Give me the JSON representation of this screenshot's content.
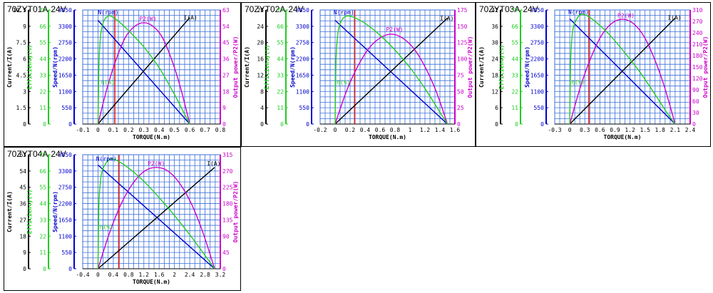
{
  "chart_data": [
    {
      "type": "line",
      "title": "70ZYT01A-24V",
      "xlabel": "TORQUE(N.m)",
      "x_ticks": [
        "-0.1",
        "0",
        "0.1",
        "0.2",
        "0.3",
        "0.4",
        "0.5",
        "0.6",
        "0.7",
        "0.8"
      ],
      "xlim": [
        -0.1,
        0.8
      ],
      "y_axes": [
        {
          "key": "current",
          "label": "Current/I(A)",
          "color": "#000000",
          "ticks": [
            "0",
            "1.5",
            "3",
            "4.5",
            "6",
            "7.5",
            "9",
            "10.5"
          ]
        },
        {
          "key": "efficiency",
          "label": "Efficiency(%)",
          "color": "#22cc22",
          "ticks": [
            "0",
            "11",
            "22",
            "33",
            "44",
            "55",
            "66",
            "77"
          ]
        },
        {
          "key": "speed",
          "label": "Speed/N(rpm)",
          "color": "#0000cc",
          "ticks": [
            "0",
            "550",
            "1100",
            "1650",
            "2200",
            "2750",
            "3300",
            "3850"
          ]
        },
        {
          "key": "power",
          "label": "Output power/P2(W)",
          "color": "#cc00cc",
          "ticks": [
            "0",
            "9",
            "18",
            "27",
            "36",
            "45",
            "54",
            "63"
          ]
        }
      ],
      "rated_torque": 0.11,
      "series": [
        {
          "name": "N(rpm)",
          "color": "#0000cc",
          "axis": "speed",
          "x": [
            0,
            0.6
          ],
          "y": [
            3500,
            0
          ]
        },
        {
          "name": "I(A)",
          "color": "#000000",
          "axis": "current",
          "x": [
            0,
            0.6
          ],
          "y": [
            0,
            9.8
          ]
        },
        {
          "name": "P2(W)",
          "color": "#cc00cc",
          "axis": "power",
          "x": [
            0,
            0.06,
            0.12,
            0.18,
            0.24,
            0.3,
            0.36,
            0.42,
            0.48,
            0.54,
            0.6
          ],
          "y": [
            0,
            20,
            36,
            48,
            54,
            56,
            54,
            48,
            36,
            20,
            0
          ]
        },
        {
          "name": "η(%)",
          "color": "#22cc22",
          "axis": "efficiency",
          "x": [
            0,
            0.005,
            0.01,
            0.02,
            0.04,
            0.07,
            0.1,
            0.15,
            0.2,
            0.3,
            0.4,
            0.5,
            0.56,
            0.6
          ],
          "y": [
            0,
            35,
            50,
            62,
            70,
            73,
            72,
            68,
            63,
            52,
            38,
            20,
            8,
            0
          ]
        }
      ],
      "curve_labels": [
        {
          "text": "N(rpm)",
          "x": 0.0,
          "axis": "speed",
          "y": 3700,
          "color": "#0000cc"
        },
        {
          "text": "P2(W)",
          "x": 0.27,
          "axis": "power",
          "y": 57,
          "color": "#cc00cc"
        },
        {
          "text": "I(A)",
          "x": 0.56,
          "axis": "current",
          "y": 9.6,
          "color": "#000000"
        },
        {
          "text": "η(%)",
          "x": 0.02,
          "axis": "efficiency",
          "y": 27,
          "color": "#22cc22"
        }
      ]
    },
    {
      "type": "line",
      "title": "70ZYT02A-24V",
      "xlabel": "TORQUE(N.m)",
      "x_ticks": [
        "-0.2",
        "0",
        "0.2",
        "0.4",
        "0.6",
        "0.8",
        "1",
        "1.2",
        "1.4",
        "1.6"
      ],
      "xlim": [
        -0.2,
        1.6
      ],
      "y_axes": [
        {
          "key": "current",
          "label": "Current/I(A)",
          "color": "#000000",
          "ticks": [
            "0",
            "4",
            "8",
            "12",
            "16",
            "20",
            "24",
            "28"
          ]
        },
        {
          "key": "efficiency",
          "label": "Efficiency(%)",
          "color": "#22cc22",
          "ticks": [
            "0",
            "11",
            "22",
            "33",
            "44",
            "55",
            "66",
            "77"
          ]
        },
        {
          "key": "speed",
          "label": "Speed/N(rpm)",
          "color": "#0000cc",
          "ticks": [
            "0",
            "550",
            "1100",
            "1650",
            "2200",
            "2750",
            "3300",
            "3850"
          ]
        },
        {
          "key": "power",
          "label": "Output power/P2(W)",
          "color": "#cc00cc",
          "ticks": [
            "0",
            "25",
            "50",
            "75",
            "100",
            "125",
            "150",
            "175"
          ]
        }
      ],
      "rated_torque": 0.26,
      "series": [
        {
          "name": "N(rpm)",
          "color": "#0000cc",
          "axis": "speed",
          "x": [
            0,
            1.5
          ],
          "y": [
            3500,
            0
          ]
        },
        {
          "name": "I(A)",
          "color": "#000000",
          "axis": "current",
          "x": [
            0,
            1.5
          ],
          "y": [
            0,
            26
          ]
        },
        {
          "name": "P2(W)",
          "color": "#cc00cc",
          "axis": "power",
          "x": [
            0,
            0.15,
            0.3,
            0.45,
            0.6,
            0.75,
            0.9,
            1.05,
            1.2,
            1.35,
            1.5
          ],
          "y": [
            0,
            50,
            88,
            116,
            132,
            138,
            132,
            116,
            88,
            50,
            0
          ]
        },
        {
          "name": "η(%)",
          "color": "#22cc22",
          "axis": "efficiency",
          "x": [
            0,
            0.01,
            0.025,
            0.05,
            0.1,
            0.16,
            0.25,
            0.4,
            0.6,
            0.8,
            1.0,
            1.2,
            1.4,
            1.5
          ],
          "y": [
            0,
            40,
            55,
            65,
            71,
            73,
            72,
            68,
            60,
            50,
            38,
            24,
            8,
            0
          ]
        }
      ],
      "curve_labels": [
        {
          "text": "N(rpm)",
          "x": -0.02,
          "axis": "speed",
          "y": 3700,
          "color": "#0000cc"
        },
        {
          "text": "P2(W)",
          "x": 0.68,
          "axis": "power",
          "y": 142,
          "color": "#cc00cc"
        },
        {
          "text": "I(A)",
          "x": 1.4,
          "axis": "current",
          "y": 25.5,
          "color": "#000000"
        },
        {
          "text": "η(%)",
          "x": 0.02,
          "axis": "efficiency",
          "y": 27,
          "color": "#22cc22"
        }
      ]
    },
    {
      "type": "line",
      "title": "70ZYT03A-24V",
      "xlabel": "TORQUE(N.m)",
      "x_ticks": [
        "-0.3",
        "0",
        "0.3",
        "0.6",
        "0.9",
        "1.2",
        "1.5",
        "1.8",
        "2.1",
        "2.4"
      ],
      "xlim": [
        -0.3,
        2.4
      ],
      "y_axes": [
        {
          "key": "current",
          "label": "Current/I(A)",
          "color": "#000000",
          "ticks": [
            "0",
            "6",
            "12",
            "18",
            "24",
            "30",
            "36",
            "42"
          ]
        },
        {
          "key": "efficiency",
          "label": "Efficiency(%)",
          "color": "#22cc22",
          "ticks": [
            "0",
            "11",
            "22",
            "33",
            "44",
            "55",
            "66",
            "77"
          ]
        },
        {
          "key": "speed",
          "label": "Speed/N(rpm)",
          "color": "#0000cc",
          "ticks": [
            "0",
            "550",
            "1100",
            "1650",
            "2200",
            "2750",
            "3300",
            "3850"
          ]
        },
        {
          "key": "power",
          "label": "Output power/P2(W)",
          "color": "#cc00cc",
          "ticks": [
            "0",
            "30",
            "60",
            "90",
            "120",
            "150",
            "180",
            "210",
            "240",
            "270",
            "310"
          ]
        }
      ],
      "rated_torque": 0.38,
      "series": [
        {
          "name": "N(rpm)",
          "color": "#0000cc",
          "axis": "speed",
          "x": [
            0,
            2.1
          ],
          "y": [
            3550,
            0
          ]
        },
        {
          "name": "I(A)",
          "color": "#000000",
          "axis": "current",
          "x": [
            0,
            2.1
          ],
          "y": [
            0,
            39
          ]
        },
        {
          "name": "P2(W)",
          "color": "#cc00cc",
          "axis": "power",
          "x": [
            0,
            0.21,
            0.42,
            0.63,
            0.84,
            1.05,
            1.26,
            1.47,
            1.68,
            1.89,
            2.1
          ],
          "y": [
            0,
            100,
            180,
            240,
            274,
            285,
            274,
            240,
            180,
            100,
            0
          ]
        },
        {
          "name": "η(%)",
          "color": "#22cc22",
          "axis": "efficiency",
          "x": [
            0,
            0.015,
            0.035,
            0.07,
            0.14,
            0.22,
            0.35,
            0.55,
            0.8,
            1.1,
            1.4,
            1.7,
            1.95,
            2.1
          ],
          "y": [
            0,
            40,
            55,
            65,
            71,
            74,
            73,
            68,
            60,
            48,
            35,
            20,
            7,
            0
          ]
        }
      ],
      "curve_labels": [
        {
          "text": "N(rpm)",
          "x": -0.03,
          "axis": "speed",
          "y": 3720,
          "color": "#0000cc"
        },
        {
          "text": "P2(W)",
          "x": 0.95,
          "axis": "power",
          "y": 290,
          "color": "#cc00cc"
        },
        {
          "text": "I(A)",
          "x": 1.95,
          "axis": "current",
          "y": 38.5,
          "color": "#000000"
        },
        {
          "text": "η(%)",
          "x": 0.03,
          "axis": "efficiency",
          "y": 27,
          "color": "#22cc22"
        }
      ]
    },
    {
      "type": "line",
      "title": "70ZYT04A-24V",
      "xlabel": "TORQUE(N.m)",
      "x_ticks": [
        "-0.4",
        "0",
        "0.4",
        "0.8",
        "1.2",
        "1.6",
        "2",
        "2.4",
        "2.8",
        "3.2"
      ],
      "xlim": [
        -0.4,
        3.2
      ],
      "y_axes": [
        {
          "key": "current",
          "label": "Current/I(A)",
          "color": "#000000",
          "ticks": [
            "0",
            "9",
            "18",
            "27",
            "36",
            "45",
            "54",
            "63"
          ]
        },
        {
          "key": "efficiency",
          "label": "Efficiency(%)",
          "color": "#22cc22",
          "ticks": [
            "0",
            "11",
            "22",
            "33",
            "44",
            "55",
            "66",
            "77"
          ]
        },
        {
          "key": "speed",
          "label": "Speed/N(rpm)",
          "color": "#0000cc",
          "ticks": [
            "0",
            "550",
            "1100",
            "1650",
            "2200",
            "2750",
            "3300",
            "3850"
          ]
        },
        {
          "key": "power",
          "label": "Output power/P2(W)",
          "color": "#cc00cc",
          "ticks": [
            "0",
            "45",
            "90",
            "135",
            "180",
            "225",
            "270",
            "315"
          ]
        }
      ],
      "rated_torque": 0.55,
      "series": [
        {
          "name": "N(rpm)",
          "color": "#0000cc",
          "axis": "speed",
          "x": [
            0,
            3.05
          ],
          "y": [
            3500,
            0
          ]
        },
        {
          "name": "I(A)",
          "color": "#000000",
          "axis": "current",
          "x": [
            0,
            3.05
          ],
          "y": [
            0,
            56
          ]
        },
        {
          "name": "P2(W)",
          "color": "#cc00cc",
          "axis": "power",
          "x": [
            0,
            0.305,
            0.61,
            0.915,
            1.22,
            1.525,
            1.83,
            2.135,
            2.44,
            2.745,
            3.05
          ],
          "y": [
            0,
            100,
            180,
            236,
            270,
            280,
            270,
            236,
            180,
            100,
            0
          ]
        },
        {
          "name": "η(%)",
          "color": "#22cc22",
          "axis": "efficiency",
          "x": [
            0,
            0.02,
            0.05,
            0.1,
            0.2,
            0.32,
            0.5,
            0.8,
            1.2,
            1.6,
            2.0,
            2.4,
            2.8,
            3.05
          ],
          "y": [
            0,
            40,
            55,
            65,
            71,
            74,
            73,
            68,
            59,
            48,
            36,
            23,
            9,
            0
          ]
        }
      ],
      "curve_labels": [
        {
          "text": "N(rpm)",
          "x": -0.05,
          "axis": "speed",
          "y": 3650,
          "color": "#0000cc"
        },
        {
          "text": "P2(W)",
          "x": 1.3,
          "axis": "power",
          "y": 285,
          "color": "#cc00cc"
        },
        {
          "text": "I(A)",
          "x": 2.85,
          "axis": "current",
          "y": 57,
          "color": "#000000"
        },
        {
          "text": "η(%)",
          "x": 0.04,
          "axis": "efficiency",
          "y": 27,
          "color": "#22cc22"
        }
      ]
    }
  ]
}
